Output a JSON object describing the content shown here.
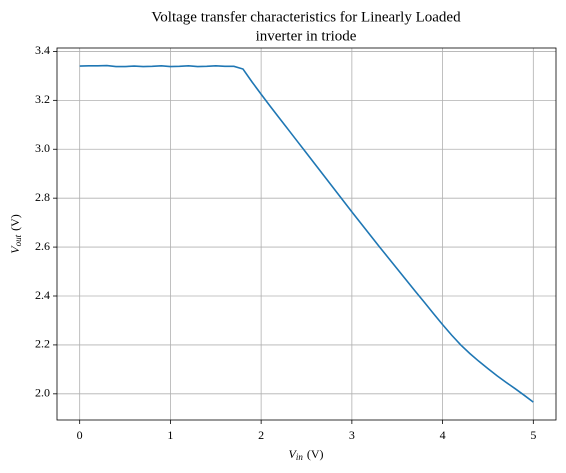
{
  "chart_data": {
    "type": "line",
    "title": [
      "Voltage transfer characteristics for Linearly Loaded",
      "inverter in triode"
    ],
    "xlabel": {
      "symbol": "V",
      "subscript": "in",
      "unit": "(V)"
    },
    "ylabel": {
      "symbol": "V",
      "subscript": "out",
      "unit": "(V)"
    },
    "x": [
      0,
      0.1,
      0.2,
      0.3,
      0.4,
      0.5,
      0.6,
      0.7,
      0.8,
      0.9,
      1.0,
      1.1,
      1.2,
      1.3,
      1.4,
      1.5,
      1.6,
      1.7,
      1.8,
      1.9,
      2.0,
      2.1,
      2.2,
      2.3,
      2.4,
      2.5,
      2.6,
      2.7,
      2.8,
      2.9,
      3.0,
      3.1,
      3.2,
      3.3,
      3.4,
      3.5,
      3.6,
      3.7,
      3.8,
      3.9,
      4.0,
      4.1,
      4.2,
      4.3,
      4.4,
      4.5,
      4.6,
      4.7,
      4.8,
      4.9,
      5.0
    ],
    "series": [
      {
        "color": "#1f77b4",
        "values": [
          3.34,
          3.341,
          3.341,
          3.342,
          3.338,
          3.338,
          3.34,
          3.338,
          3.339,
          3.341,
          3.338,
          3.339,
          3.341,
          3.338,
          3.339,
          3.341,
          3.339,
          3.339,
          3.328,
          3.275,
          3.225,
          3.176,
          3.128,
          3.08,
          3.032,
          2.984,
          2.936,
          2.888,
          2.84,
          2.792,
          2.744,
          2.697,
          2.65,
          2.603,
          2.557,
          2.511,
          2.465,
          2.419,
          2.374,
          2.328,
          2.283,
          2.24,
          2.2,
          2.165,
          2.133,
          2.103,
          2.074,
          2.047,
          2.021,
          1.994,
          1.966
        ]
      }
    ],
    "xlim": [
      -0.25,
      5.25
    ],
    "xticks": [
      0,
      1,
      2,
      3,
      4,
      5
    ],
    "ylim": [
      1.893,
      3.414
    ],
    "yticks": [
      {
        "value": 2,
        "label": "2.0"
      },
      2.2,
      2.4,
      2.6,
      2.8,
      {
        "value": 3,
        "label": "3.0"
      },
      3.2,
      3.4
    ],
    "grid": true
  }
}
